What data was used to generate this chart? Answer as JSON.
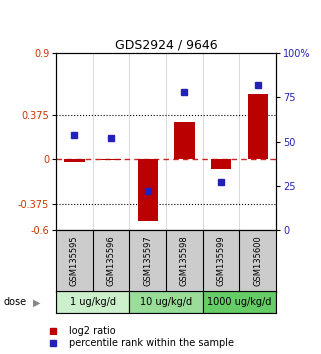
{
  "title": "GDS2924 / 9646",
  "samples": [
    "GSM135595",
    "GSM135596",
    "GSM135597",
    "GSM135598",
    "GSM135599",
    "GSM135600"
  ],
  "log2_ratios": [
    -0.02,
    -0.01,
    -0.52,
    0.32,
    -0.08,
    0.55
  ],
  "percentile_ranks": [
    54,
    52,
    22,
    78,
    27,
    82
  ],
  "dose_groups": [
    {
      "label": "1 ug/kg/d",
      "spans": [
        0,
        1
      ],
      "color": "#ccf0cc"
    },
    {
      "label": "10 ug/kg/d",
      "spans": [
        2,
        3
      ],
      "color": "#99dd99"
    },
    {
      "label": "1000 ug/kg/d",
      "spans": [
        4,
        5
      ],
      "color": "#66cc66"
    }
  ],
  "ylim_left": [
    -0.6,
    0.9
  ],
  "ylim_right": [
    0,
    100
  ],
  "yticks_left": [
    0.9,
    0.375,
    0,
    -0.375,
    -0.6
  ],
  "ytick_labels_left": [
    "0.9",
    "0.375",
    "0",
    "-0.375",
    "-0.6"
  ],
  "yticks_right": [
    100,
    75,
    50,
    25,
    0
  ],
  "ytick_labels_right": [
    "100%",
    "75",
    "50",
    "25",
    "0"
  ],
  "hlines": [
    0.375,
    -0.375
  ],
  "bar_color": "#bb0000",
  "dot_color": "#2222bb",
  "zero_line_color": "#cc2222",
  "background_color": "#ffffff",
  "plot_bg_color": "#ffffff",
  "sample_bg_color": "#cccccc",
  "title_fontsize": 9,
  "tick_fontsize": 7,
  "sample_fontsize": 6,
  "dose_fontsize": 7,
  "legend_fontsize": 7
}
